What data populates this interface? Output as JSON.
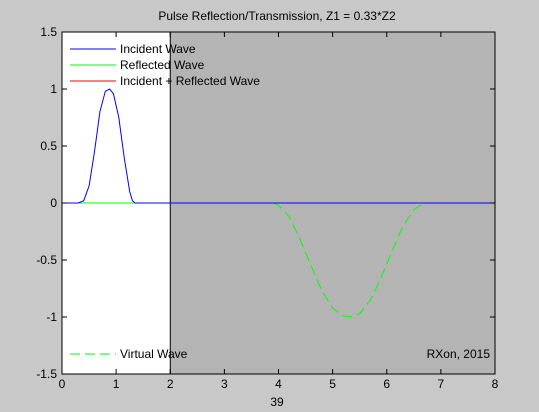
{
  "figure": {
    "background_color": "#c8c8c8"
  },
  "chart_data": {
    "type": "line",
    "title": "Pulse Reflection/Transmission, Z1 = 0.33*Z2",
    "xlabel": "39",
    "ylabel": "",
    "xlim": [
      0,
      8
    ],
    "ylim": [
      -1.5,
      1.5
    ],
    "xticks": [
      "0",
      "1",
      "2",
      "3",
      "4",
      "5",
      "6",
      "7",
      "8"
    ],
    "yticks": [
      "1.5",
      "1",
      "0.5",
      "0",
      "-0.5",
      "-1",
      "-1.5"
    ],
    "grid": false,
    "boundary_x": 2,
    "region_colors": {
      "left": "#ffffff",
      "right": "#b4b4b4"
    },
    "legend": {
      "placement": "top-left",
      "entries": [
        {
          "label": "Incident Wave",
          "color": "#0000ff",
          "style": "solid"
        },
        {
          "label": "Reflected Wave",
          "color": "#00ff00",
          "style": "solid"
        },
        {
          "label": "Incident + Reflected Wave",
          "color": "#ff0000",
          "style": "solid"
        }
      ]
    },
    "virtual_legend": {
      "label": "Virtual Wave",
      "color": "#00ff00",
      "style": "dashed",
      "placement": "bottom-left"
    },
    "annotation": {
      "text": "RXon, 2015",
      "placement": "bottom-right"
    },
    "series": [
      {
        "name": "Incident Wave",
        "color": "#0000ff",
        "style": "solid",
        "x": [
          0,
          0.3,
          0.4,
          0.5,
          0.6,
          0.7,
          0.8,
          0.88,
          0.95,
          1.05,
          1.15,
          1.25,
          1.3,
          1.35,
          2,
          3,
          4,
          5,
          6,
          7,
          8
        ],
        "y": [
          0,
          0,
          0.02,
          0.15,
          0.45,
          0.8,
          0.98,
          1.0,
          0.96,
          0.75,
          0.4,
          0.1,
          0.02,
          0,
          0,
          0,
          0,
          0,
          0,
          0,
          0
        ]
      },
      {
        "name": "Reflected Wave",
        "color": "#00ff00",
        "style": "solid",
        "x": [
          0,
          1.95
        ],
        "y": [
          0,
          0
        ]
      },
      {
        "name": "Virtual Wave",
        "color": "#00ff00",
        "style": "dashed",
        "x": [
          3.9,
          4.0,
          4.2,
          4.4,
          4.6,
          4.8,
          5.0,
          5.2,
          5.35,
          5.5,
          5.7,
          5.9,
          6.1,
          6.3,
          6.5,
          6.65,
          6.75
        ],
        "y": [
          0,
          -0.02,
          -0.12,
          -0.32,
          -0.55,
          -0.77,
          -0.92,
          -0.99,
          -1.0,
          -0.97,
          -0.85,
          -0.65,
          -0.42,
          -0.2,
          -0.06,
          -0.01,
          0
        ]
      }
    ]
  }
}
